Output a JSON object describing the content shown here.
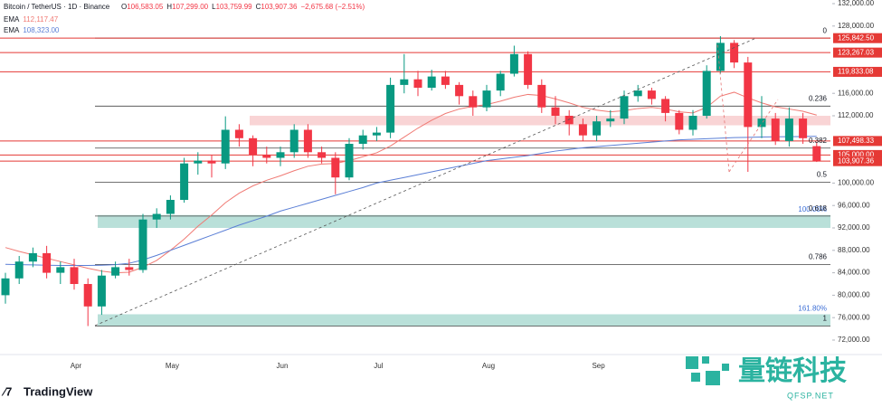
{
  "header": {
    "symbol": "Bitcoin / TetherUS · 1D · Binance",
    "quote": [
      {
        "key": "O",
        "value": "106,583.05"
      },
      {
        "key": "H",
        "value": "107,299.00"
      },
      {
        "key": "L",
        "value": "103,759.99"
      },
      {
        "key": "C",
        "value": "103,907.36"
      }
    ],
    "change": "−2,675.68 (−2.51%)"
  },
  "chart_data": {
    "type": "candlestick",
    "categories": [
      null,
      null,
      null,
      null,
      null,
      "Apr",
      null,
      null,
      null,
      null,
      null,
      null,
      "May",
      null,
      null,
      null,
      null,
      null,
      null,
      null,
      "Jun",
      null,
      null,
      null,
      null,
      null,
      null,
      "Jul",
      null,
      null,
      null,
      null,
      null,
      null,
      null,
      "Aug",
      null,
      null,
      null,
      null,
      null,
      null,
      null,
      "Sep",
      null,
      null,
      null,
      null,
      null,
      null,
      null,
      null,
      null,
      null,
      null,
      null,
      null,
      null,
      null,
      null
    ],
    "ohlc": {
      "open": [
        80000,
        83000,
        86000,
        87500,
        84000,
        85000,
        82000,
        78000,
        83500,
        85000,
        84500,
        93500,
        94500,
        97000,
        103500,
        104000,
        103500,
        109500,
        108000,
        105000,
        104500,
        105500,
        109500,
        105500,
        104500,
        101000,
        107000,
        108500,
        109000,
        117500,
        118500,
        117000,
        119000,
        117500,
        115500,
        113500,
        116500,
        119500,
        123000,
        117500,
        113500,
        112000,
        110500,
        108500,
        111000,
        111500,
        115500,
        116500,
        115000,
        112500,
        109500,
        112000,
        120000,
        125000,
        121500,
        110000,
        111500,
        107500,
        111500,
        106583.05
      ],
      "high": [
        84000,
        87000,
        88500,
        88800,
        86000,
        86500,
        83000,
        84500,
        86000,
        86500,
        94500,
        95500,
        97800,
        104500,
        105500,
        105000,
        111900,
        110500,
        108500,
        106500,
        106500,
        110500,
        110500,
        106500,
        105500,
        108000,
        109500,
        110000,
        118800,
        123000,
        120000,
        120200,
        120000,
        118000,
        116500,
        117500,
        120000,
        124500,
        123500,
        118500,
        115500,
        113000,
        111500,
        112000,
        113000,
        116500,
        117500,
        117000,
        115500,
        113000,
        113000,
        121000,
        126200,
        125500,
        122500,
        115500,
        112500,
        113500,
        112500,
        107299
      ],
      "low": [
        78500,
        82000,
        85000,
        83000,
        82000,
        81000,
        74500,
        76500,
        83000,
        83500,
        84000,
        92000,
        93500,
        96500,
        101500,
        101000,
        102500,
        106500,
        103000,
        103500,
        103000,
        104500,
        104500,
        103500,
        98000,
        100500,
        106000,
        107500,
        108000,
        116000,
        115500,
        116500,
        116800,
        114000,
        112000,
        112800,
        115500,
        119000,
        116800,
        112500,
        110500,
        108500,
        107500,
        107500,
        110000,
        110500,
        114500,
        114000,
        111000,
        108700,
        108500,
        111500,
        119500,
        120500,
        102000,
        108000,
        106800,
        106500,
        107000,
        103759.99
      ],
      "close": [
        83000,
        86000,
        87500,
        84000,
        85000,
        82000,
        78000,
        83500,
        85000,
        84500,
        93500,
        94500,
        97000,
        103500,
        104000,
        103500,
        109500,
        108000,
        105000,
        104500,
        105500,
        109500,
        105500,
        104500,
        101000,
        107000,
        108500,
        109000,
        117500,
        118500,
        117000,
        119000,
        117500,
        115500,
        113500,
        116500,
        119500,
        123000,
        117500,
        113500,
        112000,
        110500,
        108500,
        111000,
        111500,
        115500,
        116500,
        115000,
        112500,
        109500,
        112000,
        120000,
        125000,
        121500,
        110000,
        111500,
        107500,
        111500,
        108000,
        103907.36
      ],
      "up_color": "#089981",
      "down_color": "#f23645"
    },
    "series": [
      {
        "name": "EMA",
        "legend_value": "112,117.47",
        "color": "#f07a74",
        "values": [
          88500,
          87800,
          87200,
          86600,
          86000,
          85400,
          84800,
          84300,
          84000,
          84100,
          85000,
          86200,
          88000,
          90000,
          92300,
          94300,
          96500,
          98200,
          99500,
          100500,
          101300,
          102200,
          103000,
          103400,
          103500,
          104000,
          104700,
          105400,
          106600,
          108200,
          109800,
          111200,
          112400,
          113200,
          113700,
          114000,
          114600,
          115300,
          115800,
          115600,
          115000,
          114300,
          113500,
          113000,
          112700,
          112900,
          113300,
          113500,
          113200,
          112700,
          112500,
          113500,
          115500,
          116200,
          115200,
          114300,
          113600,
          113200,
          112800,
          112117
        ]
      },
      {
        "name": "EMA",
        "legend_value": "108,323.00",
        "color": "#5b7fd6",
        "values": [
          85500,
          85450,
          85400,
          85350,
          85300,
          85300,
          85300,
          85350,
          85450,
          85700,
          86300,
          87100,
          88000,
          88900,
          89800,
          90700,
          91600,
          92500,
          93300,
          94100,
          95000,
          95700,
          96400,
          97100,
          97800,
          98500,
          99200,
          100000,
          100500,
          101000,
          101500,
          102000,
          102500,
          103000,
          103500,
          104000,
          104300,
          104600,
          104900,
          105300,
          105700,
          106000,
          106300,
          106500,
          106700,
          106900,
          107100,
          107300,
          107500,
          107700,
          107800,
          107900,
          108000,
          108100,
          108150,
          108200,
          108250,
          108280,
          108300,
          108323
        ]
      }
    ],
    "ylim": [
      72000,
      132000
    ],
    "yticks": [
      {
        "value": 72000,
        "label": "72,000.00"
      },
      {
        "value": 76000,
        "label": "76,000.00"
      },
      {
        "value": 80000,
        "label": "80,000.00"
      },
      {
        "value": 84000,
        "label": "84,000.00"
      },
      {
        "value": 88000,
        "label": "88,000.00"
      },
      {
        "value": 92000,
        "label": "92,000.00"
      },
      {
        "value": 96000,
        "label": "96,000.00"
      },
      {
        "value": 100000,
        "label": "100,000.00"
      },
      {
        "value": 112000,
        "label": "112,000.00"
      },
      {
        "value": 116000,
        "label": "116,000.00"
      },
      {
        "value": 128000,
        "label": "128,000.00"
      },
      {
        "value": 132000,
        "label": "132,000.00"
      }
    ],
    "price_levels": [
      {
        "value": 125842.5,
        "label": "125,842.50"
      },
      {
        "value": 123267.03,
        "label": "123,267.03"
      },
      {
        "value": 119833.08,
        "label": "119,833.08"
      },
      {
        "value": 107498.33,
        "label": "107,498.33"
      },
      {
        "value": 105000,
        "label": "105,000.00"
      },
      {
        "value": 103907.36,
        "label": "103,907.36"
      }
    ],
    "level_color": "#e53935",
    "fib_levels": [
      {
        "level": 0,
        "price": 125842.5
      },
      {
        "level": 0.236,
        "price": 113725
      },
      {
        "level": 0.382,
        "price": 106230
      },
      {
        "level": 0.5,
        "price": 100171
      },
      {
        "level": 0.618,
        "price": 94114
      },
      {
        "level": 0.786,
        "price": 85486
      },
      {
        "level": 1,
        "price": 74500
      }
    ],
    "zones": [
      {
        "from": 92000,
        "to": 94300,
        "label": "100.00%",
        "color": "#a8d8cf"
      },
      {
        "from": 74500,
        "to": 76600,
        "label": "161.80%",
        "color": "#a8d8cf"
      },
      {
        "from": 110300,
        "to": 112000,
        "color": "#f7c9cb"
      }
    ]
  },
  "branding": {
    "logo": "TradingView",
    "watermark": "量链科技",
    "watermark_site": "QFSP.NET"
  }
}
